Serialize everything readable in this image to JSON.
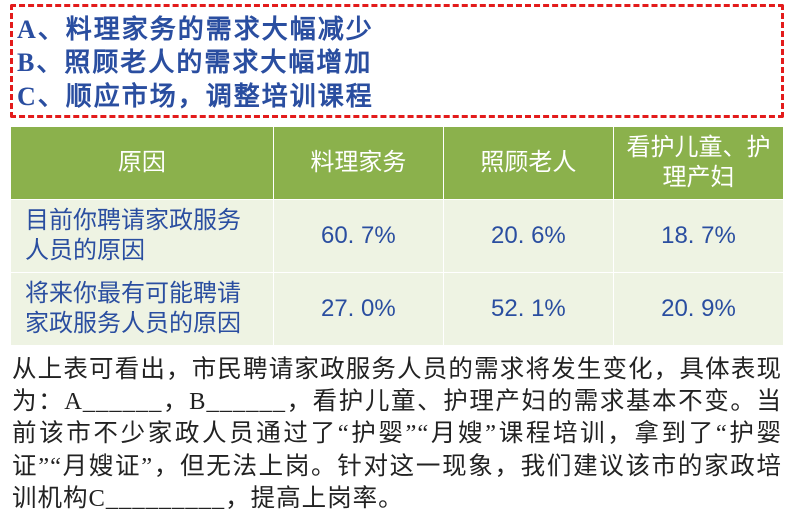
{
  "answers": {
    "border_color": "#e31b1b",
    "text_color": "#2a4ea0",
    "a_label": "A、",
    "a_text": "料理家务的需求大幅减少",
    "b_label": "B、",
    "b_text": "照顾老人的需求大幅增加",
    "c_label": "C、",
    "c_text": "顺应市场，调整培训课程"
  },
  "table": {
    "header_bg": "#8bb14c",
    "header_color": "#ffffff",
    "row_bg": "#eef3e3",
    "cell_color": "#2a4ea0",
    "columns": [
      "原因",
      "料理家务",
      "照顾老人",
      "看护儿童、护理产妇"
    ],
    "rows": [
      {
        "label": "目前你聘请家政服务人员的原因",
        "values": [
          "60. 7%",
          "20. 6%",
          "18. 7%"
        ]
      },
      {
        "label": "将来你最有可能聘请家政服务人员的原因",
        "values": [
          "27. 0%",
          "52. 1%",
          "20. 9%"
        ]
      }
    ]
  },
  "paragraph": {
    "text": "从上表可看出，市民聘请家政服务人员的需求将发生变化，具体表现为：A______，B______，看护儿童、护理产妇的需求基本不变。当前该市不少家政人员通过了“护婴”“月嫂”课程培训，拿到了“护婴证”“月嫂证”，但无法上岗。针对这一现象，我们建议该市的家政培训机构C_________，提高上岗率。"
  }
}
